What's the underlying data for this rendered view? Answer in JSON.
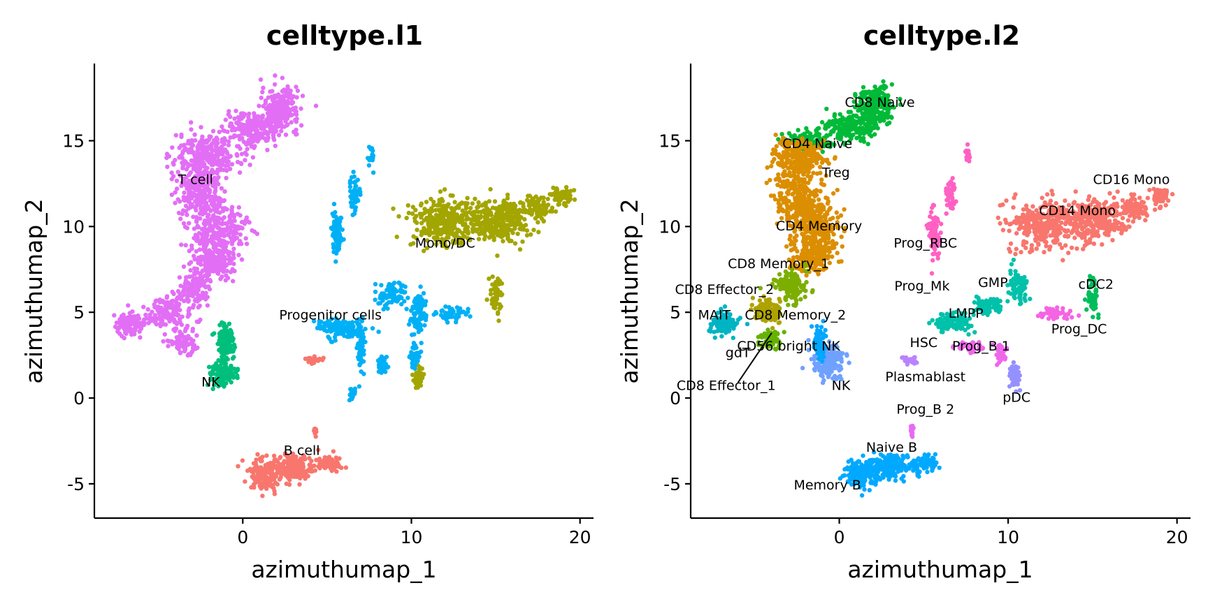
{
  "chart_data": [
    {
      "type": "scatter",
      "title": "celltype.l1",
      "xlabel": "azimuthumap_1",
      "ylabel": "azimuthumap_2",
      "xlim": [
        -8.8,
        20.8
      ],
      "ylim": [
        -7,
        19.5
      ],
      "xticks": [
        0,
        10,
        20
      ],
      "yticks": [
        -5,
        0,
        5,
        10,
        15
      ],
      "grid": false,
      "legend": "none",
      "clusters": [
        {
          "label": "T cell",
          "color": "#E36EF6",
          "label_x": -2.8,
          "label_y": 12.7
        },
        {
          "label": "Mono/DC",
          "color": "#A3A500",
          "label_x": 12.0,
          "label_y": 9.0
        },
        {
          "label": "Progenitor cells",
          "color": "#00B0F6",
          "label_x": 5.2,
          "label_y": 4.8
        },
        {
          "label": "NK",
          "color": "#00BF7D",
          "label_x": -1.9,
          "label_y": 0.9
        },
        {
          "label": "B cell",
          "color": "#F8766D",
          "label_x": 3.5,
          "label_y": -3.1
        }
      ]
    },
    {
      "type": "scatter",
      "title": "celltype.l2",
      "xlabel": "azimuthumap_1",
      "ylabel": "azimuthumap_2",
      "xlim": [
        -8.8,
        20.8
      ],
      "ylim": [
        -7,
        19.5
      ],
      "xticks": [
        0,
        10,
        20
      ],
      "yticks": [
        -5,
        0,
        5,
        10,
        15
      ],
      "grid": false,
      "legend": "none",
      "clusters": [
        {
          "label": "CD8 Naive",
          "color": "#00BA38",
          "label_x": 2.4,
          "label_y": 17.2
        },
        {
          "label": "CD4 Naive",
          "color": "#DB8E00",
          "label_x": -1.3,
          "label_y": 14.8
        },
        {
          "label": "Treg",
          "color": "#E88526",
          "label_x": -0.2,
          "label_y": 13.1
        },
        {
          "label": "CD4 Memory",
          "color": "#DB8E00",
          "label_x": -1.2,
          "label_y": 10.0
        },
        {
          "label": "CD8 Memory_1",
          "color": "#7CAE00",
          "label_x": -3.6,
          "label_y": 7.8
        },
        {
          "label": "CD8 Effector_2",
          "color": "#AEA200",
          "label_x": -6.8,
          "label_y": 6.3
        },
        {
          "label": "MAIT",
          "color": "#00B4C4",
          "label_x": -7.4,
          "label_y": 4.8
        },
        {
          "label": "CD8 Memory_2",
          "color": "#64B200",
          "label_x": -2.6,
          "label_y": 4.8
        },
        {
          "label": "CD56 bright NK",
          "color": "#00A6FF",
          "label_x": -3.0,
          "label_y": 3.0
        },
        {
          "label": "gdT",
          "color": "#C09B00",
          "label_x": -6.0,
          "label_y": 2.6
        },
        {
          "label": "CD8 Effector_1",
          "color": "#8AAB00",
          "label_x": -6.7,
          "label_y": 0.7
        },
        {
          "label": "NK",
          "color": "#6FA1FF",
          "label_x": 0.1,
          "label_y": 0.7
        },
        {
          "label": "Prog_RBC",
          "color": "#FF61C3",
          "label_x": 5.1,
          "label_y": 9.0
        },
        {
          "label": "Prog_Mk",
          "color": "#FF62BC",
          "label_x": 4.9,
          "label_y": 6.5
        },
        {
          "label": "GMP",
          "color": "#00C1AA",
          "label_x": 9.1,
          "label_y": 6.7
        },
        {
          "label": "LMPP",
          "color": "#00BFC4",
          "label_x": 7.5,
          "label_y": 4.9
        },
        {
          "label": "HSC",
          "color": "#00C0B8",
          "label_x": 5.0,
          "label_y": 3.2
        },
        {
          "label": "Prog_B 1",
          "color": "#EF67EB",
          "label_x": 8.4,
          "label_y": 3.0
        },
        {
          "label": "Plasmablast",
          "color": "#B983FF",
          "label_x": 5.1,
          "label_y": 1.2
        },
        {
          "label": "pDC",
          "color": "#9590FF",
          "label_x": 10.5,
          "label_y": 0.0
        },
        {
          "label": "Prog_B 2",
          "color": "#E76BF3",
          "label_x": 5.1,
          "label_y": -0.7
        },
        {
          "label": "Naive B",
          "color": "#00A9FF",
          "label_x": 3.1,
          "label_y": -2.9
        },
        {
          "label": "Memory B",
          "color": "#00A9FF",
          "label_x": -0.7,
          "label_y": -5.1
        },
        {
          "label": "CD16 Mono",
          "color": "#F8766D",
          "label_x": 17.3,
          "label_y": 12.7
        },
        {
          "label": "CD14 Mono",
          "color": "#F8766D",
          "label_x": 14.1,
          "label_y": 10.9
        },
        {
          "label": "cDC2",
          "color": "#00BD5C",
          "label_x": 15.2,
          "label_y": 6.6
        },
        {
          "label": "Prog_DC",
          "color": "#F564E3",
          "label_x": 14.2,
          "label_y": 4.0
        }
      ],
      "annotations": [
        {
          "type": "leader-line",
          "from": [
            -6.0,
            0.9
          ],
          "to": [
            -4.0,
            3.8
          ],
          "label": "CD8 Effector_1"
        }
      ]
    }
  ]
}
